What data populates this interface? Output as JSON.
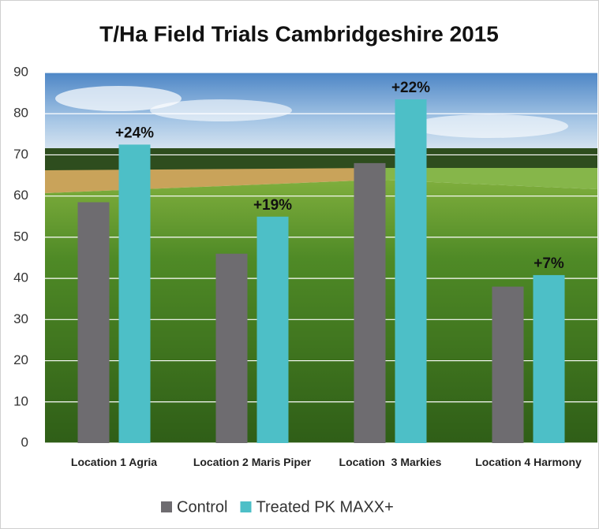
{
  "chart_data": {
    "type": "bar",
    "title": "T/Ha Field Trials Cambridgeshire 2015",
    "categories": [
      "Location 1 Agria",
      "Location 2 Maris Piper",
      "Location  3 Markies",
      "Location 4 Harmony"
    ],
    "series": [
      {
        "name": "Control",
        "color": "#6e6c70",
        "values": [
          58.5,
          46,
          68,
          38
        ]
      },
      {
        "name": "Treated PK MAXX+",
        "color": "#4dbfc7",
        "values": [
          72.5,
          55,
          83.5,
          40.8
        ]
      }
    ],
    "annotations": [
      "+24%",
      "+19%",
      "+22%",
      "+7%"
    ],
    "ylim": [
      0,
      90
    ],
    "yticks": [
      0,
      10,
      20,
      30,
      40,
      50,
      60,
      70,
      80,
      90
    ],
    "grid": true,
    "legend": "bottom"
  }
}
